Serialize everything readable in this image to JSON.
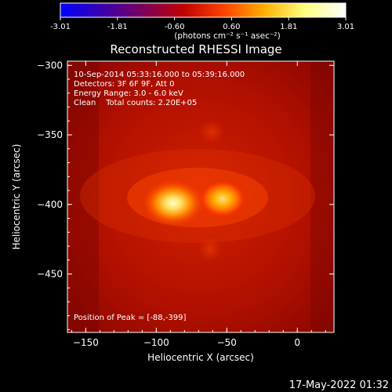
{
  "colorbar": {
    "tick_labels": [
      "-3.01",
      "-1.81",
      "-0.60",
      "0.60",
      "1.81",
      "3.01"
    ],
    "unit_label": "(photons cm⁻² s⁻¹ asec⁻²)",
    "colors": [
      "#0000ff",
      "#3a00b0",
      "#7a0060",
      "#c00000",
      "#ff4000",
      "#ffb000",
      "#ffff80",
      "#ffffff"
    ]
  },
  "image": {
    "title": "Reconstructed RHESSI Image",
    "annotations": [
      "10-Sep-2014 05:33:16.000 to 05:39:16.000",
      "Detectors: 3F 6F 9F, Att 0",
      "Energy Range: 3.0 - 6.0 keV",
      "Clean    Total counts: 2.20E+05"
    ],
    "peak_label": "Position of Peak = [-88,-399]",
    "peak": [
      -88,
      -399
    ],
    "secondary_source": [
      -53,
      -396
    ]
  },
  "axes": {
    "xlabel": "Heliocentric X (arcsec)",
    "ylabel": "Heliocentric Y (arcsec)",
    "xticks": [
      -150,
      -100,
      -50,
      0
    ],
    "xtick_labels": [
      "−150",
      "−100",
      "−50",
      "0"
    ],
    "yticks": [
      -300,
      -350,
      -400,
      -450
    ],
    "ytick_labels": [
      "−300",
      "−350",
      "−400",
      "−450"
    ],
    "xlim": [
      -163,
      26
    ],
    "ylim": [
      -492,
      -297
    ]
  },
  "footer": {
    "timestamp": "17-May-2022 01:32"
  }
}
